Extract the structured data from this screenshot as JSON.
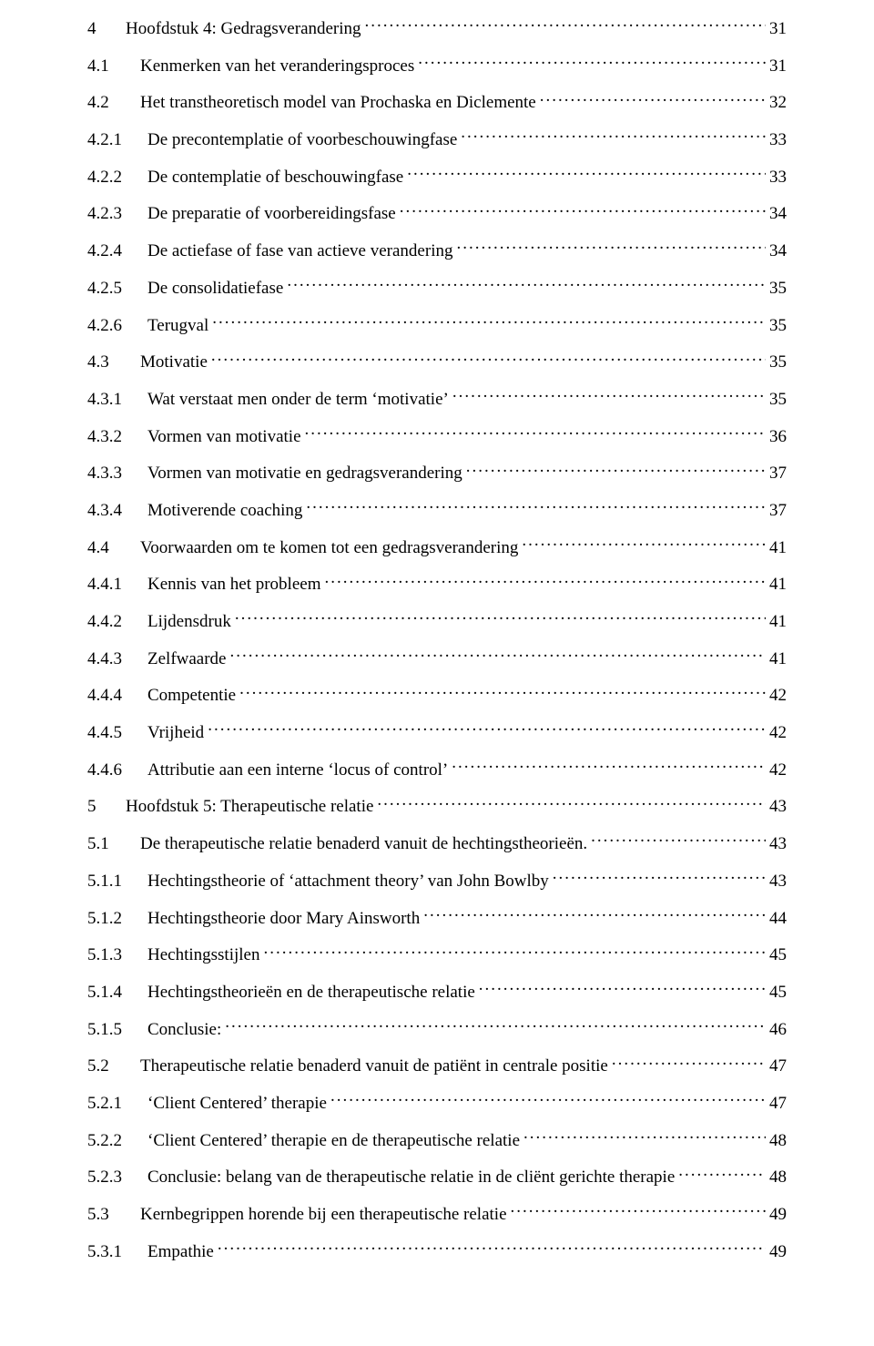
{
  "toc": [
    {
      "level": 1,
      "num": "4",
      "title": "Hoofdstuk 4: Gedragsverandering",
      "page": "31"
    },
    {
      "level": 2,
      "num": "4.1",
      "title": "Kenmerken van het veranderingsproces",
      "page": "31"
    },
    {
      "level": 2,
      "num": "4.2",
      "title": "Het transtheoretisch model van Prochaska en Diclemente",
      "page": "32"
    },
    {
      "level": 3,
      "num": "4.2.1",
      "title": "De precontemplatie of voorbeschouwingfase",
      "page": "33"
    },
    {
      "level": 3,
      "num": "4.2.2",
      "title": "De contemplatie of beschouwingfase",
      "page": "33"
    },
    {
      "level": 3,
      "num": "4.2.3",
      "title": "De preparatie of voorbereidingsfase",
      "page": "34"
    },
    {
      "level": 3,
      "num": "4.2.4",
      "title": "De actiefase of fase van actieve verandering",
      "page": "34"
    },
    {
      "level": 3,
      "num": "4.2.5",
      "title": "De consolidatiefase",
      "page": "35"
    },
    {
      "level": 3,
      "num": "4.2.6",
      "title": "Terugval",
      "page": "35"
    },
    {
      "level": 2,
      "num": "4.3",
      "title": "Motivatie",
      "page": "35"
    },
    {
      "level": 3,
      "num": "4.3.1",
      "title": "Wat verstaat men onder de term ‘motivatie’",
      "page": "35"
    },
    {
      "level": 3,
      "num": "4.3.2",
      "title": "Vormen van motivatie",
      "page": "36"
    },
    {
      "level": 3,
      "num": "4.3.3",
      "title": "Vormen van motivatie en gedragsverandering",
      "page": "37"
    },
    {
      "level": 3,
      "num": "4.3.4",
      "title": "Motiverende coaching",
      "page": "37"
    },
    {
      "level": 2,
      "num": "4.4",
      "title": "Voorwaarden om te komen tot een gedragsverandering",
      "page": "41"
    },
    {
      "level": 3,
      "num": "4.4.1",
      "title": "Kennis van het probleem",
      "page": "41"
    },
    {
      "level": 3,
      "num": "4.4.2",
      "title": "Lijdensdruk",
      "page": "41"
    },
    {
      "level": 3,
      "num": "4.4.3",
      "title": "Zelfwaarde",
      "page": "41"
    },
    {
      "level": 3,
      "num": "4.4.4",
      "title": "Competentie",
      "page": "42"
    },
    {
      "level": 3,
      "num": "4.4.5",
      "title": "Vrijheid",
      "page": "42"
    },
    {
      "level": 3,
      "num": "4.4.6",
      "title": "Attributie aan een interne ‘locus of control’",
      "page": "42"
    },
    {
      "level": 1,
      "num": "5",
      "title": "Hoofdstuk 5: Therapeutische relatie",
      "page": "43"
    },
    {
      "level": 2,
      "num": "5.1",
      "title": "De therapeutische relatie benaderd vanuit de hechtingstheorieën.",
      "page": "43"
    },
    {
      "level": 3,
      "num": "5.1.1",
      "title": "Hechtingstheorie of ‘attachment theory’ van John Bowlby",
      "page": "43"
    },
    {
      "level": 3,
      "num": "5.1.2",
      "title": "Hechtingstheorie door Mary Ainsworth",
      "page": "44"
    },
    {
      "level": 3,
      "num": "5.1.3",
      "title": "Hechtingsstijlen",
      "page": "45"
    },
    {
      "level": 3,
      "num": "5.1.4",
      "title": "Hechtingstheorieën en de therapeutische relatie",
      "page": "45"
    },
    {
      "level": 3,
      "num": "5.1.5",
      "title": "Conclusie:",
      "page": "46"
    },
    {
      "level": 2,
      "num": "5.2",
      "title": "Therapeutische relatie benaderd vanuit de patiënt in centrale positie",
      "page": "47"
    },
    {
      "level": 3,
      "num": "5.2.1",
      "title": "‘Client Centered’ therapie",
      "page": "47"
    },
    {
      "level": 3,
      "num": "5.2.2",
      "title": "‘Client Centered’ therapie en de therapeutische relatie",
      "page": "48"
    },
    {
      "level": 3,
      "num": "5.2.3",
      "title": "Conclusie: belang van de therapeutische relatie in de cliënt gerichte therapie",
      "page": "48"
    },
    {
      "level": 2,
      "num": "5.3",
      "title": "Kernbegrippen horende bij een therapeutische relatie",
      "page": "49"
    },
    {
      "level": 3,
      "num": "5.3.1",
      "title": "Empathie",
      "page": "49"
    }
  ]
}
